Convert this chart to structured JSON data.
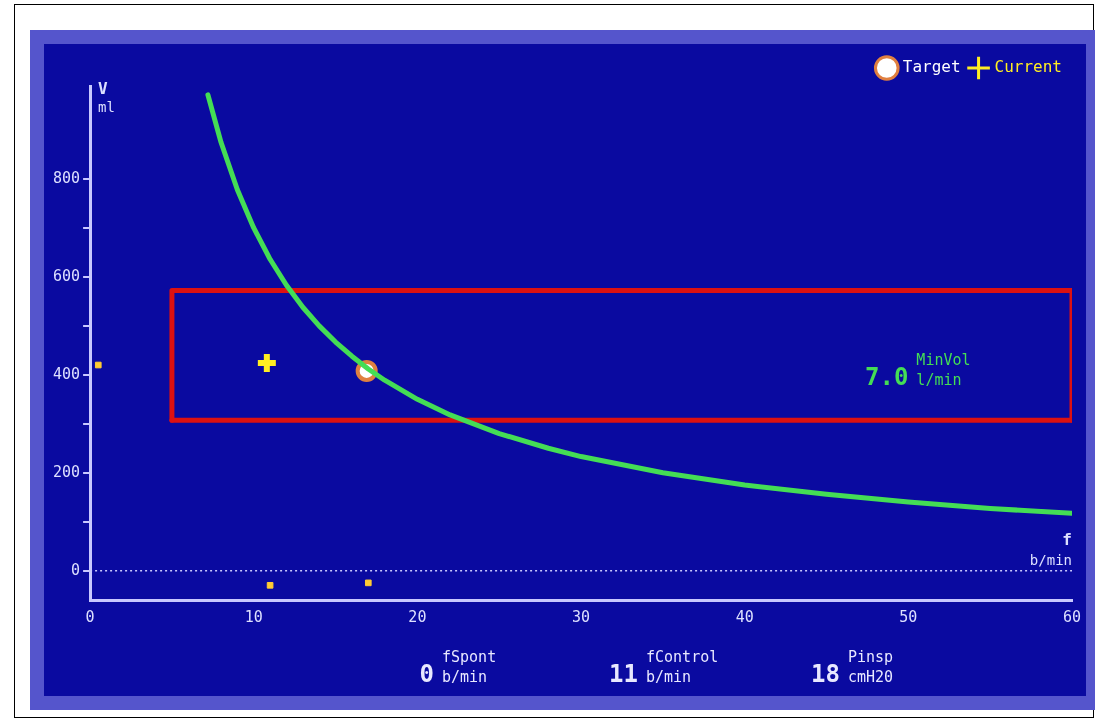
{
  "chart_data": {
    "type": "line",
    "xlabel": "f b/min",
    "ylabel": "V ml",
    "xlim": [
      0,
      60
    ],
    "xticks": [
      0,
      10,
      20,
      30,
      40,
      50,
      60
    ],
    "ylim": [
      -60,
      990
    ],
    "yticks": [
      0,
      {
        "value": 100,
        "label": null
      },
      200,
      {
        "value": 300,
        "label": null
      },
      400,
      {
        "value": 500,
        "label": null
      },
      600,
      {
        "value": 700,
        "label": null
      },
      800
    ],
    "grid": false,
    "legend": "top right",
    "ref_lines": [
      {
        "axis": "y",
        "value": 0,
        "label": null,
        "color": "#c8c8ff",
        "line_style": "dotted"
      }
    ],
    "series": [
      {
        "type": "line",
        "color": "#44dd55",
        "marker": "none",
        "x": [
          7.2,
          8,
          9,
          10,
          11,
          12,
          13,
          14,
          15,
          16,
          17,
          18,
          20,
          22,
          25,
          28,
          30,
          35,
          40,
          45,
          50,
          55,
          60
        ],
        "values": [
          972,
          875,
          778,
          700,
          636,
          583,
          538,
          500,
          467,
          438,
          412,
          389,
          350,
          318,
          280,
          250,
          233,
          200,
          175,
          156,
          140,
          127,
          117
        ]
      },
      {
        "type": "line",
        "color": "#dd1111",
        "marker": "none",
        "x": [
          5,
          5,
          60,
          60
        ],
        "values": [
          307,
          572,
          572,
          307
        ]
      },
      {
        "type": "line",
        "color": "#dd1111",
        "marker": "none",
        "x": [
          5,
          60
        ],
        "values": [
          307,
          307
        ]
      },
      {
        "type": "scatter",
        "name": "Target",
        "color": "#e08040",
        "marker": "circle",
        "x": [
          16.9
        ],
        "values": [
          408
        ]
      },
      {
        "type": "scatter",
        "name": "Current",
        "color": "#ffee22",
        "marker": "cross",
        "x": [
          10.8
        ],
        "values": [
          424
        ]
      },
      {
        "type": "scatter",
        "color": "#ffcc33",
        "marker": "square",
        "x": [
          0.5,
          11,
          17
        ],
        "values": [
          420,
          -30,
          -25
        ]
      }
    ],
    "annotations": [
      "MinVol",
      "7.0",
      "l/min",
      "fSpont",
      "0",
      "b/min",
      "fControl",
      "11",
      "b/min",
      "Pinsp",
      "18",
      "cmH20"
    ]
  }
}
